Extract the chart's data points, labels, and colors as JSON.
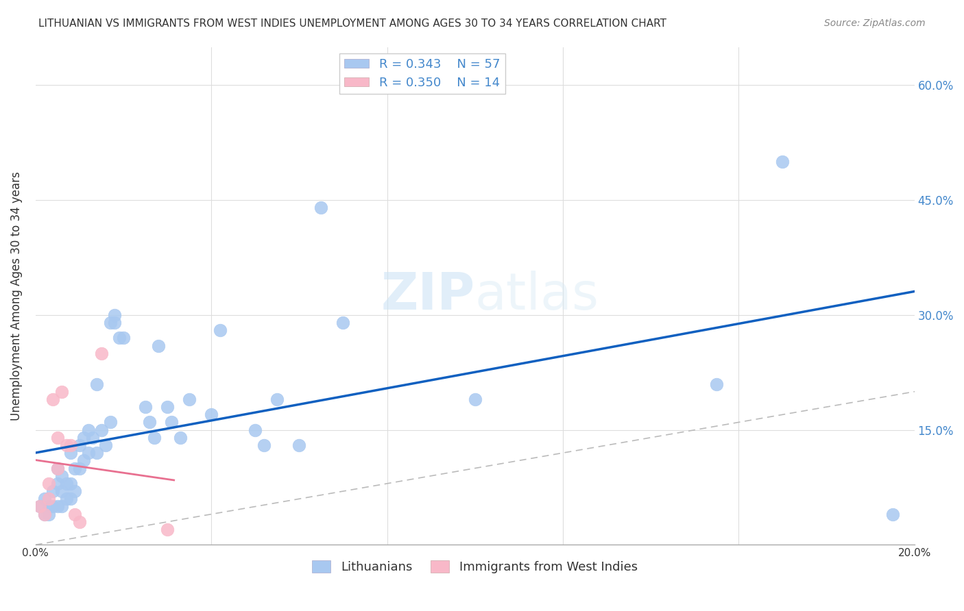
{
  "title": "LITHUANIAN VS IMMIGRANTS FROM WEST INDIES UNEMPLOYMENT AMONG AGES 30 TO 34 YEARS CORRELATION CHART",
  "source": "Source: ZipAtlas.com",
  "ylabel": "Unemployment Among Ages 30 to 34 years",
  "xlim": [
    0.0,
    0.2
  ],
  "ylim": [
    0.0,
    0.65
  ],
  "yticks": [
    0.0,
    0.15,
    0.3,
    0.45,
    0.6
  ],
  "ytick_labels": [
    "",
    "15.0%",
    "30.0%",
    "45.0%",
    "60.0%"
  ],
  "R_blue": 0.343,
  "N_blue": 57,
  "R_pink": 0.35,
  "N_pink": 14,
  "blue_color": "#a8c8f0",
  "pink_color": "#f8b8c8",
  "blue_line_color": "#1060c0",
  "pink_line_color": "#e87090",
  "blue_label": "Lithuanians",
  "pink_label": "Immigrants from West Indies",
  "watermark_zip": "ZIP",
  "watermark_atlas": "atlas",
  "blue_scatter_x": [
    0.001,
    0.002,
    0.002,
    0.003,
    0.003,
    0.004,
    0.004,
    0.005,
    0.005,
    0.005,
    0.006,
    0.006,
    0.006,
    0.007,
    0.007,
    0.008,
    0.008,
    0.008,
    0.009,
    0.009,
    0.01,
    0.01,
    0.011,
    0.011,
    0.012,
    0.012,
    0.013,
    0.014,
    0.014,
    0.015,
    0.016,
    0.017,
    0.017,
    0.018,
    0.018,
    0.019,
    0.02,
    0.025,
    0.026,
    0.027,
    0.028,
    0.03,
    0.031,
    0.033,
    0.035,
    0.04,
    0.042,
    0.05,
    0.052,
    0.055,
    0.06,
    0.065,
    0.07,
    0.1,
    0.155,
    0.17,
    0.195
  ],
  "blue_scatter_y": [
    0.05,
    0.04,
    0.06,
    0.05,
    0.04,
    0.05,
    0.07,
    0.05,
    0.08,
    0.1,
    0.05,
    0.07,
    0.09,
    0.06,
    0.08,
    0.06,
    0.08,
    0.12,
    0.07,
    0.1,
    0.1,
    0.13,
    0.11,
    0.14,
    0.12,
    0.15,
    0.14,
    0.12,
    0.21,
    0.15,
    0.13,
    0.16,
    0.29,
    0.29,
    0.3,
    0.27,
    0.27,
    0.18,
    0.16,
    0.14,
    0.26,
    0.18,
    0.16,
    0.14,
    0.19,
    0.17,
    0.28,
    0.15,
    0.13,
    0.19,
    0.13,
    0.44,
    0.29,
    0.19,
    0.21,
    0.5,
    0.04
  ],
  "pink_scatter_x": [
    0.001,
    0.002,
    0.003,
    0.003,
    0.004,
    0.005,
    0.005,
    0.006,
    0.007,
    0.008,
    0.009,
    0.01,
    0.015,
    0.03
  ],
  "pink_scatter_y": [
    0.05,
    0.04,
    0.06,
    0.08,
    0.19,
    0.1,
    0.14,
    0.2,
    0.13,
    0.13,
    0.04,
    0.03,
    0.25,
    0.02
  ],
  "background_color": "#ffffff",
  "grid_color": "#dddddd"
}
